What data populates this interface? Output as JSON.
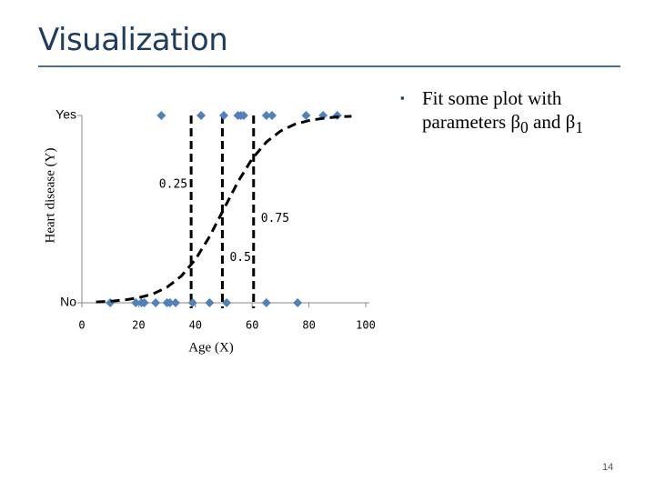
{
  "title": "Visualization",
  "bullet": [
    "Fit some plot with parameters β",
    "0",
    " and β",
    "1"
  ],
  "page_number": "14",
  "chart_data": {
    "type": "scatter",
    "x_label": "Age (X)",
    "y_label": "Heart disease (Y)",
    "xlim": [
      0,
      100
    ],
    "xticks": [
      0,
      20,
      40,
      60,
      80,
      100
    ],
    "ylim": [
      0,
      1
    ],
    "yticks": [
      {
        "value": 0,
        "label": "No"
      },
      {
        "value": 1,
        "label": "Yes"
      }
    ],
    "series": [
      {
        "type": "scatter",
        "color": "#4f81bd",
        "x": [
          28,
          42,
          50,
          55,
          56,
          57,
          65,
          67,
          79,
          85,
          90
        ],
        "values": [
          1,
          1,
          1,
          1,
          1,
          1,
          1,
          1,
          1,
          1,
          1
        ]
      },
      {
        "type": "scatter",
        "color": "#4f81bd",
        "x": [
          10,
          19,
          21,
          22,
          26,
          30,
          31,
          33,
          39,
          45,
          51,
          65,
          76
        ],
        "values": [
          0,
          0,
          0,
          0,
          0,
          0,
          0,
          0,
          0,
          0,
          0,
          0,
          0
        ]
      },
      {
        "type": "line",
        "color": "#000000",
        "dashed": true,
        "x": [
          5,
          10,
          15,
          20,
          25,
          30,
          35,
          40,
          45,
          50,
          55,
          60,
          65,
          70,
          75,
          80,
          85,
          90,
          95
        ],
        "values": [
          0.0045,
          0.008,
          0.015,
          0.027,
          0.047,
          0.083,
          0.142,
          0.231,
          0.354,
          0.5,
          0.646,
          0.769,
          0.858,
          0.917,
          0.953,
          0.973,
          0.985,
          0.992,
          0.996
        ]
      }
    ],
    "thresholds": [
      {
        "x": 38.5,
        "label": "0.25"
      },
      {
        "x": 49.5,
        "label": "0.5"
      },
      {
        "x": 60.5,
        "label": "0.75"
      }
    ]
  }
}
